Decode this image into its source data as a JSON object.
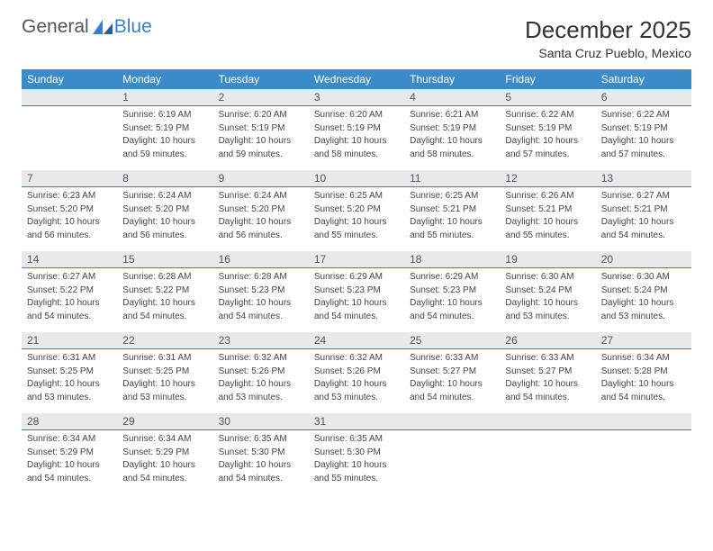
{
  "brand": {
    "part1": "General",
    "part2": "Blue"
  },
  "title": "December 2025",
  "location": "Santa Cruz Pueblo, Mexico",
  "colors": {
    "header_bg": "#3b8bc8",
    "header_text": "#ffffff",
    "daynum_bg": "#e8e9ea",
    "daynum_border": "#3b7fa8",
    "body_text": "#444444",
    "title_text": "#333333",
    "brand_gray": "#555555",
    "brand_blue": "#3b7fc4"
  },
  "fonts": {
    "title_size": 26,
    "location_size": 14,
    "dayhdr_size": 12,
    "daynum_size": 12,
    "cell_size": 10
  },
  "weekdays": [
    "Sunday",
    "Monday",
    "Tuesday",
    "Wednesday",
    "Thursday",
    "Friday",
    "Saturday"
  ],
  "weeks": [
    [
      null,
      {
        "n": "1",
        "sr": "Sunrise: 6:19 AM",
        "ss": "Sunset: 5:19 PM",
        "d1": "Daylight: 10 hours",
        "d2": "and 59 minutes."
      },
      {
        "n": "2",
        "sr": "Sunrise: 6:20 AM",
        "ss": "Sunset: 5:19 PM",
        "d1": "Daylight: 10 hours",
        "d2": "and 59 minutes."
      },
      {
        "n": "3",
        "sr": "Sunrise: 6:20 AM",
        "ss": "Sunset: 5:19 PM",
        "d1": "Daylight: 10 hours",
        "d2": "and 58 minutes."
      },
      {
        "n": "4",
        "sr": "Sunrise: 6:21 AM",
        "ss": "Sunset: 5:19 PM",
        "d1": "Daylight: 10 hours",
        "d2": "and 58 minutes."
      },
      {
        "n": "5",
        "sr": "Sunrise: 6:22 AM",
        "ss": "Sunset: 5:19 PM",
        "d1": "Daylight: 10 hours",
        "d2": "and 57 minutes."
      },
      {
        "n": "6",
        "sr": "Sunrise: 6:22 AM",
        "ss": "Sunset: 5:19 PM",
        "d1": "Daylight: 10 hours",
        "d2": "and 57 minutes."
      }
    ],
    [
      {
        "n": "7",
        "sr": "Sunrise: 6:23 AM",
        "ss": "Sunset: 5:20 PM",
        "d1": "Daylight: 10 hours",
        "d2": "and 56 minutes."
      },
      {
        "n": "8",
        "sr": "Sunrise: 6:24 AM",
        "ss": "Sunset: 5:20 PM",
        "d1": "Daylight: 10 hours",
        "d2": "and 56 minutes."
      },
      {
        "n": "9",
        "sr": "Sunrise: 6:24 AM",
        "ss": "Sunset: 5:20 PM",
        "d1": "Daylight: 10 hours",
        "d2": "and 56 minutes."
      },
      {
        "n": "10",
        "sr": "Sunrise: 6:25 AM",
        "ss": "Sunset: 5:20 PM",
        "d1": "Daylight: 10 hours",
        "d2": "and 55 minutes."
      },
      {
        "n": "11",
        "sr": "Sunrise: 6:25 AM",
        "ss": "Sunset: 5:21 PM",
        "d1": "Daylight: 10 hours",
        "d2": "and 55 minutes."
      },
      {
        "n": "12",
        "sr": "Sunrise: 6:26 AM",
        "ss": "Sunset: 5:21 PM",
        "d1": "Daylight: 10 hours",
        "d2": "and 55 minutes."
      },
      {
        "n": "13",
        "sr": "Sunrise: 6:27 AM",
        "ss": "Sunset: 5:21 PM",
        "d1": "Daylight: 10 hours",
        "d2": "and 54 minutes."
      }
    ],
    [
      {
        "n": "14",
        "sr": "Sunrise: 6:27 AM",
        "ss": "Sunset: 5:22 PM",
        "d1": "Daylight: 10 hours",
        "d2": "and 54 minutes."
      },
      {
        "n": "15",
        "sr": "Sunrise: 6:28 AM",
        "ss": "Sunset: 5:22 PM",
        "d1": "Daylight: 10 hours",
        "d2": "and 54 minutes."
      },
      {
        "n": "16",
        "sr": "Sunrise: 6:28 AM",
        "ss": "Sunset: 5:23 PM",
        "d1": "Daylight: 10 hours",
        "d2": "and 54 minutes."
      },
      {
        "n": "17",
        "sr": "Sunrise: 6:29 AM",
        "ss": "Sunset: 5:23 PM",
        "d1": "Daylight: 10 hours",
        "d2": "and 54 minutes."
      },
      {
        "n": "18",
        "sr": "Sunrise: 6:29 AM",
        "ss": "Sunset: 5:23 PM",
        "d1": "Daylight: 10 hours",
        "d2": "and 54 minutes."
      },
      {
        "n": "19",
        "sr": "Sunrise: 6:30 AM",
        "ss": "Sunset: 5:24 PM",
        "d1": "Daylight: 10 hours",
        "d2": "and 53 minutes."
      },
      {
        "n": "20",
        "sr": "Sunrise: 6:30 AM",
        "ss": "Sunset: 5:24 PM",
        "d1": "Daylight: 10 hours",
        "d2": "and 53 minutes."
      }
    ],
    [
      {
        "n": "21",
        "sr": "Sunrise: 6:31 AM",
        "ss": "Sunset: 5:25 PM",
        "d1": "Daylight: 10 hours",
        "d2": "and 53 minutes."
      },
      {
        "n": "22",
        "sr": "Sunrise: 6:31 AM",
        "ss": "Sunset: 5:25 PM",
        "d1": "Daylight: 10 hours",
        "d2": "and 53 minutes."
      },
      {
        "n": "23",
        "sr": "Sunrise: 6:32 AM",
        "ss": "Sunset: 5:26 PM",
        "d1": "Daylight: 10 hours",
        "d2": "and 53 minutes."
      },
      {
        "n": "24",
        "sr": "Sunrise: 6:32 AM",
        "ss": "Sunset: 5:26 PM",
        "d1": "Daylight: 10 hours",
        "d2": "and 53 minutes."
      },
      {
        "n": "25",
        "sr": "Sunrise: 6:33 AM",
        "ss": "Sunset: 5:27 PM",
        "d1": "Daylight: 10 hours",
        "d2": "and 54 minutes."
      },
      {
        "n": "26",
        "sr": "Sunrise: 6:33 AM",
        "ss": "Sunset: 5:27 PM",
        "d1": "Daylight: 10 hours",
        "d2": "and 54 minutes."
      },
      {
        "n": "27",
        "sr": "Sunrise: 6:34 AM",
        "ss": "Sunset: 5:28 PM",
        "d1": "Daylight: 10 hours",
        "d2": "and 54 minutes."
      }
    ],
    [
      {
        "n": "28",
        "sr": "Sunrise: 6:34 AM",
        "ss": "Sunset: 5:29 PM",
        "d1": "Daylight: 10 hours",
        "d2": "and 54 minutes."
      },
      {
        "n": "29",
        "sr": "Sunrise: 6:34 AM",
        "ss": "Sunset: 5:29 PM",
        "d1": "Daylight: 10 hours",
        "d2": "and 54 minutes."
      },
      {
        "n": "30",
        "sr": "Sunrise: 6:35 AM",
        "ss": "Sunset: 5:30 PM",
        "d1": "Daylight: 10 hours",
        "d2": "and 54 minutes."
      },
      {
        "n": "31",
        "sr": "Sunrise: 6:35 AM",
        "ss": "Sunset: 5:30 PM",
        "d1": "Daylight: 10 hours",
        "d2": "and 55 minutes."
      },
      null,
      null,
      null
    ]
  ]
}
